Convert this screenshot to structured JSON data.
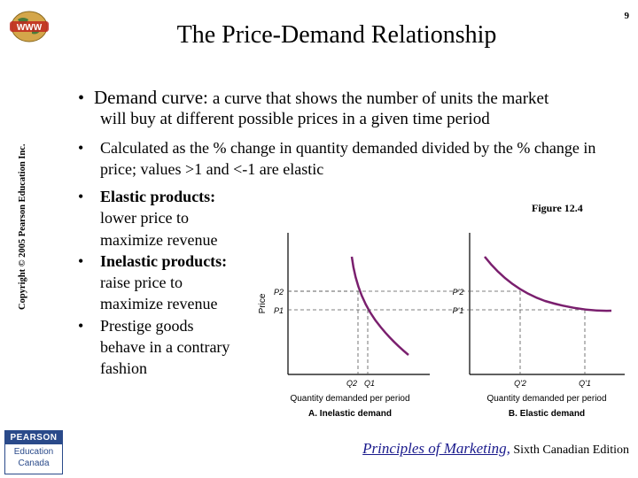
{
  "header": {
    "title": "The Price-Demand Relationship",
    "page_number": "9",
    "www_logo_text": "WWW"
  },
  "copyright": "Copyright © 2005 Pearson Education Inc.",
  "bullets": {
    "demand_curve_term": "Demand curve:",
    "demand_curve_def_line1": "a curve that shows the number of units the market",
    "demand_curve_def_line2": "will buy at different possible prices in a given time period",
    "elasticity_note": "Calculated as the % change in quantity demanded divided by the % change in price; values >1 and <-1 are elastic",
    "elastic_term": "Elastic products:",
    "elastic_rest": "lower price to maximize revenue",
    "inelastic_term": "Inelastic products:",
    "inelastic_rest": "raise price to maximize revenue",
    "prestige": "Prestige goods behave in a contrary fashion",
    "glyph": "•"
  },
  "figure": {
    "label": "Figure 12.4"
  },
  "chart_data": [
    {
      "type": "line",
      "title": "A. Inelastic demand",
      "xlabel": "Quantity demanded per period",
      "ylabel": "Price",
      "x_ticks": [
        "Q2",
        "Q1"
      ],
      "y_ticks": [
        "P2",
        "P1"
      ]
    },
    {
      "type": "line",
      "title": "B. Elastic demand",
      "xlabel": "Quantity demanded per period",
      "ylabel": "",
      "x_ticks": [
        "Q'2",
        "Q'1"
      ],
      "y_ticks": [
        "P'2",
        "P'1"
      ]
    }
  ],
  "publisher": {
    "pearson": "PEARSON",
    "education_line1": "Education",
    "education_line2": "Canada"
  },
  "footer": {
    "book_title": "Principles of Marketing,",
    "edition": "Sixth Canadian Edition"
  },
  "colors": {
    "curve": "#7a1f6e",
    "pearson_blue": "#2a4a8a",
    "footer_title": "#1a1a8c"
  }
}
